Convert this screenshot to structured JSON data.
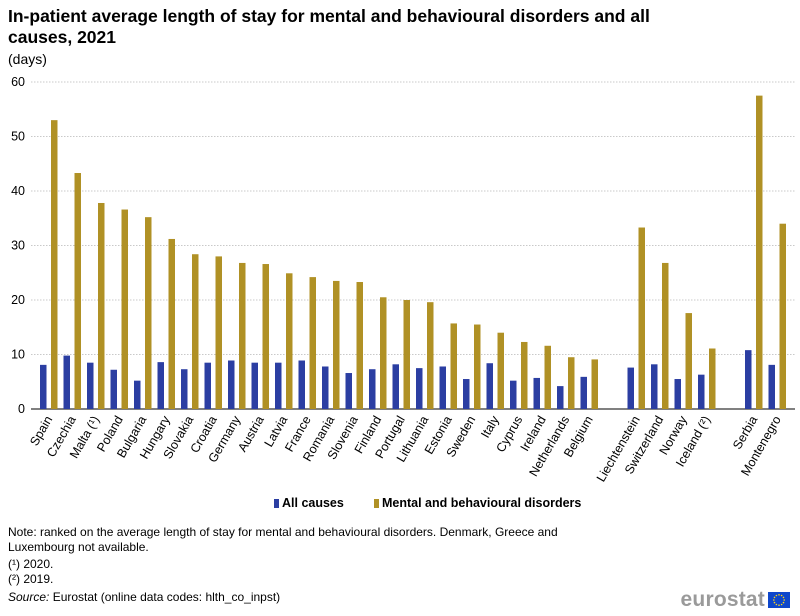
{
  "header": {
    "title": "In-patient average length of stay for mental and behavioural disorders and all causes, 2021",
    "unit": "(days)"
  },
  "chart_data": {
    "type": "bar",
    "title": "In-patient average length of stay for mental and behavioural disorders and all causes, 2021",
    "ylabel": "(days)",
    "xlabel": "",
    "ylim": [
      0,
      60
    ],
    "yticks": [
      0,
      10,
      20,
      30,
      40,
      50,
      60
    ],
    "grid": true,
    "legend_position": "bottom",
    "groups": [
      [
        "Spain",
        "Czechia",
        "Malta (¹)",
        "Poland",
        "Bulgaria",
        "Hungary",
        "Slovakia",
        "Croatia",
        "Germany",
        "Austria",
        "Latvia",
        "France",
        "Romania",
        "Slovenia",
        "Finland",
        "Portugal",
        "Lithuania",
        "Estonia",
        "Sweden",
        "Italy",
        "Cyprus",
        "Ireland",
        "Netherlands",
        "Belgium"
      ],
      [
        "Liechtenstein",
        "Switzerland",
        "Norway",
        "Iceland (²)"
      ],
      [
        "Serbia",
        "Montenegro"
      ]
    ],
    "categories": [
      "Spain",
      "Czechia",
      "Malta (¹)",
      "Poland",
      "Bulgaria",
      "Hungary",
      "Slovakia",
      "Croatia",
      "Germany",
      "Austria",
      "Latvia",
      "France",
      "Romania",
      "Slovenia",
      "Finland",
      "Portugal",
      "Lithuania",
      "Estonia",
      "Sweden",
      "Italy",
      "Cyprus",
      "Ireland",
      "Netherlands",
      "Belgium",
      "Liechtenstein",
      "Switzerland",
      "Norway",
      "Iceland (²)",
      "Serbia",
      "Montenegro"
    ],
    "series": [
      {
        "name": "All causes",
        "color": "#2b3ea2",
        "values": [
          8.1,
          9.8,
          8.5,
          7.2,
          5.2,
          8.6,
          7.3,
          8.5,
          8.9,
          8.5,
          8.5,
          8.9,
          7.8,
          6.6,
          7.3,
          8.2,
          7.5,
          7.8,
          5.5,
          8.4,
          5.2,
          5.7,
          4.2,
          5.9,
          7.6,
          8.2,
          5.5,
          6.3,
          10.8,
          8.1
        ]
      },
      {
        "name": "Mental and behavioural disorders",
        "color": "#b09125",
        "values": [
          53.0,
          43.3,
          37.8,
          36.6,
          35.2,
          31.2,
          28.4,
          28.0,
          26.8,
          26.6,
          24.9,
          24.2,
          23.5,
          23.3,
          20.5,
          20.0,
          19.6,
          15.7,
          15.5,
          14.0,
          12.3,
          11.6,
          9.5,
          9.1,
          33.3,
          26.8,
          17.6,
          11.1,
          57.5,
          34.0
        ]
      }
    ]
  },
  "notes": {
    "main": "Note: ranked on the average length of stay for mental and behavioural disorders. Denmark, Greece and Luxembourg not available.",
    "footnote_1": "(¹) 2020.",
    "footnote_2": "(²) 2019.",
    "source_label": "Source:",
    "source_text": " Eurostat (online data codes: hlth_co_inpst)"
  },
  "branding": {
    "logo_text": "eurostat",
    "flag_color": "#0e47cb",
    "star_color": "#ffd617"
  }
}
